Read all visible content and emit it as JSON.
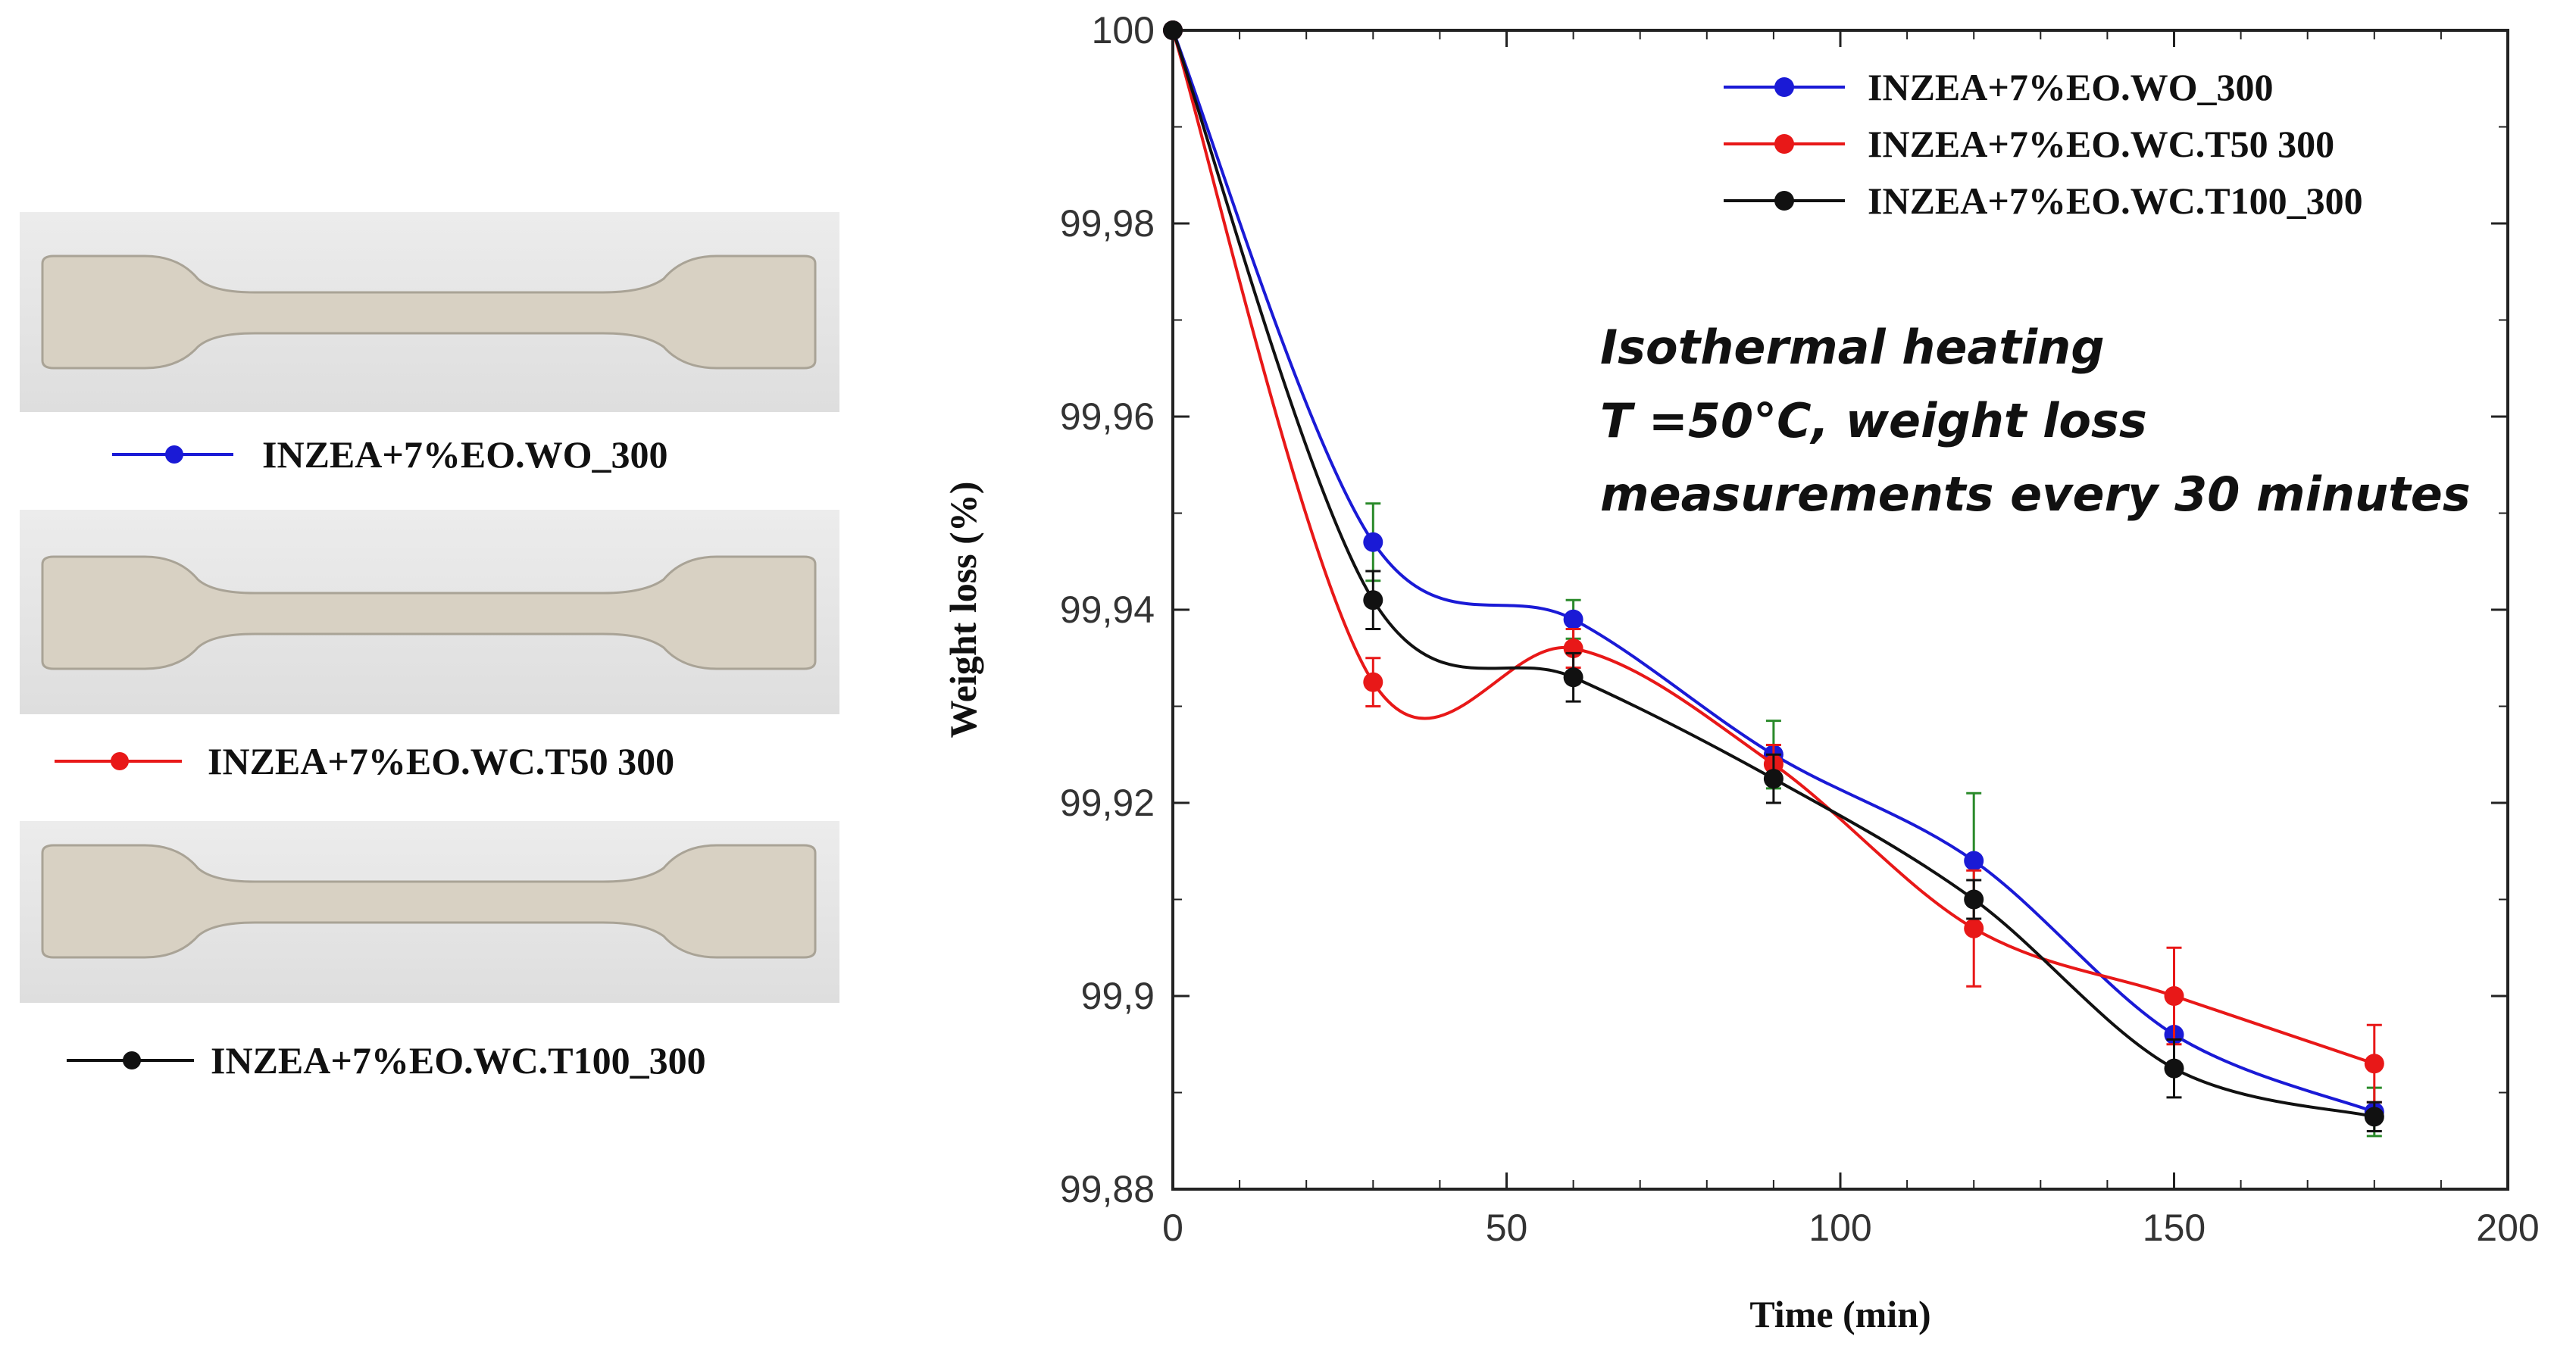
{
  "specimens": [
    {
      "label": "INZEA+7%EO.WO_300",
      "color": "#1a1ad6"
    },
    {
      "label": "INZEA+7%EO.WC.T50  300",
      "color": "#e81818"
    },
    {
      "label": "INZEA+7%EO.WC.T100_300",
      "color": "#111111"
    }
  ],
  "chart_data": {
    "type": "line",
    "title": "",
    "xlabel": "Time (min)",
    "ylabel": "Weight loss (%)",
    "xlim": [
      0,
      200
    ],
    "ylim": [
      99.88,
      100
    ],
    "xticks": [
      0,
      50,
      100,
      150,
      200
    ],
    "xtick_labels": [
      "0",
      "50",
      "100",
      "150",
      "200"
    ],
    "yticks": [
      99.88,
      99.9,
      99.92,
      99.94,
      99.96,
      99.98,
      100
    ],
    "ytick_labels": [
      "99,88",
      "99,9",
      "99,92",
      "99,94",
      "99,96",
      "99,98",
      "100"
    ],
    "grid": false,
    "legend_position": "top-right",
    "annotation": [
      "Isothermal heating",
      "T =50°C, weight loss",
      "measurements every 30 minutes"
    ],
    "x": [
      0,
      30,
      60,
      90,
      120,
      150,
      180
    ],
    "series": [
      {
        "name": "INZEA+7%EO.WO_300",
        "color": "#1a1ad6",
        "values": [
          100,
          99.947,
          99.939,
          99.925,
          99.914,
          99.896,
          99.888
        ],
        "error": [
          0,
          0.004,
          0.002,
          0.0035,
          0.007,
          0.004,
          0.0025
        ]
      },
      {
        "name": "INZEA+7%EO.WC.T50  300",
        "color": "#e81818",
        "values": [
          100,
          99.9325,
          99.936,
          99.924,
          99.907,
          99.9,
          99.893
        ],
        "error": [
          0,
          0.0025,
          0.002,
          0.002,
          0.006,
          0.005,
          0.004
        ]
      },
      {
        "name": "INZEA+7%EO.WC.T100_300",
        "color": "#111111",
        "values": [
          100,
          99.941,
          99.933,
          99.9225,
          99.91,
          99.8925,
          99.8875
        ],
        "error": [
          0,
          0.003,
          0.0025,
          0.0025,
          0.002,
          0.003,
          0.0015
        ]
      }
    ]
  }
}
